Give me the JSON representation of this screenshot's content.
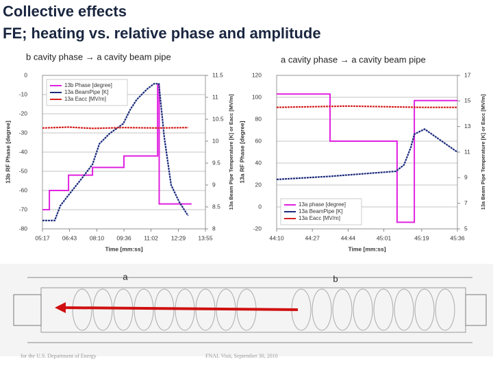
{
  "slide": {
    "title": [
      "Collective effects",
      "FE; heating vs. relative phase and amplitude"
    ],
    "captions": [
      "b cavity phase → a cavity beam pipe",
      "a cavity phase → a cavity beam pipe"
    ],
    "diagram_labels": [
      "a",
      "b"
    ],
    "footer": [
      "for the U.S. Department of Energy",
      "FNAL Visit, September 30, 2010"
    ]
  },
  "chart_data": [
    {
      "type": "line",
      "xlabel": "Time [mm:ss]",
      "ylabel": "13b RF Phase [degree]",
      "y2label": "13a Beam Pipe Temperature [K] or Eacc [MV/m]",
      "xlim": [
        317,
        835
      ],
      "xticks": [
        {
          "value": 317,
          "label": "05:17"
        },
        {
          "value": 403,
          "label": "06:43"
        },
        {
          "value": 490,
          "label": "08:10"
        },
        {
          "value": 576,
          "label": "09:36"
        },
        {
          "value": 662,
          "label": "11:02"
        },
        {
          "value": 749,
          "label": "12:29"
        },
        {
          "value": 835,
          "label": "13:55"
        }
      ],
      "ylim": [
        -80,
        0
      ],
      "yticks": [
        -80,
        -70,
        -60,
        -50,
        -40,
        -30,
        -20,
        -10,
        0
      ],
      "y2lim": [
        8,
        11.5
      ],
      "y2ticks": [
        8,
        8.5,
        9,
        9.5,
        10,
        10.5,
        11,
        11.5
      ],
      "grid": true,
      "legend": "upper left",
      "series": [
        {
          "name": "13b Phase [degree]",
          "color": "#e020e0",
          "x": [
            317,
            339,
            339,
            400,
            400,
            476,
            476,
            576,
            576,
            683,
            683,
            688,
            688,
            791
          ],
          "values": [
            -70,
            -70,
            -60,
            -60,
            -52,
            -52,
            -48,
            -48,
            -42,
            -42,
            -5,
            -5,
            -67,
            -67
          ]
        },
        {
          "name": "13a BeamPipe [K]",
          "color": "#1a2a7a",
          "axis": "y2",
          "x": [
            317,
            356,
            374,
            400,
            443,
            476,
            498,
            530,
            574,
            596,
            617,
            650,
            672,
            687,
            704,
            726,
            752,
            780
          ],
          "values": [
            8.19,
            8.19,
            8.53,
            8.77,
            9.16,
            9.47,
            9.94,
            10.17,
            10.4,
            10.72,
            10.95,
            11.19,
            11.31,
            11.31,
            10.1,
            9.0,
            8.61,
            8.3
          ]
        },
        {
          "name": "13a Eacc [MV/m]",
          "color": "#d42020",
          "axis": "y2",
          "x": [
            317,
            400,
            476,
            576,
            683,
            780
          ],
          "values": [
            10.3,
            10.32,
            10.29,
            10.31,
            10.3,
            10.31
          ]
        }
      ]
    },
    {
      "type": "line",
      "xlabel": "Time [mm:ss]",
      "ylabel": "13a RF Phase [degree]",
      "y2label": "13a Beam Pipe Temperature [K] or Eacc [MV/m]",
      "xlim": [
        2650,
        2736
      ],
      "xticks": [
        {
          "value": 2650,
          "label": "44:10"
        },
        {
          "value": 2667,
          "label": "44:27"
        },
        {
          "value": 2684,
          "label": "44:44"
        },
        {
          "value": 2701,
          "label": "45:01"
        },
        {
          "value": 2719,
          "label": "45:19"
        },
        {
          "value": 2736,
          "label": "45:36"
        }
      ],
      "ylim": [
        -20,
        120
      ],
      "yticks": [
        -20,
        0,
        20,
        40,
        60,
        80,
        100,
        120
      ],
      "y2lim": [
        5,
        17
      ],
      "y2ticks": [
        5,
        7,
        9,
        11,
        13,
        15,
        17
      ],
      "grid": true,
      "legend": "lower left",
      "series": [
        {
          "name": "13a phase [degree]",
          "color": "#e020e0",
          "x": [
            2650,
            2675.4,
            2675.4,
            2707.3,
            2707.3,
            2715.5,
            2715.5,
            2736
          ],
          "values": [
            103,
            103,
            60,
            60,
            -14,
            -14,
            97,
            97
          ]
        },
        {
          "name": "13a BeamPipe [K]",
          "color": "#1a2a7a",
          "axis": "y2",
          "x": [
            2650,
            2674.8,
            2706.7,
            2710.6,
            2713.9,
            2715.5,
            2720.4,
            2736
          ],
          "values": [
            8.86,
            9.1,
            9.5,
            10.0,
            11.4,
            12.4,
            12.8,
            11.0
          ]
        },
        {
          "name": "13a Eacc [MV/m]",
          "color": "#d42020",
          "axis": "y2",
          "x": [
            2650,
            2684,
            2719,
            2736
          ],
          "values": [
            14.5,
            14.6,
            14.5,
            14.5
          ]
        }
      ]
    }
  ]
}
